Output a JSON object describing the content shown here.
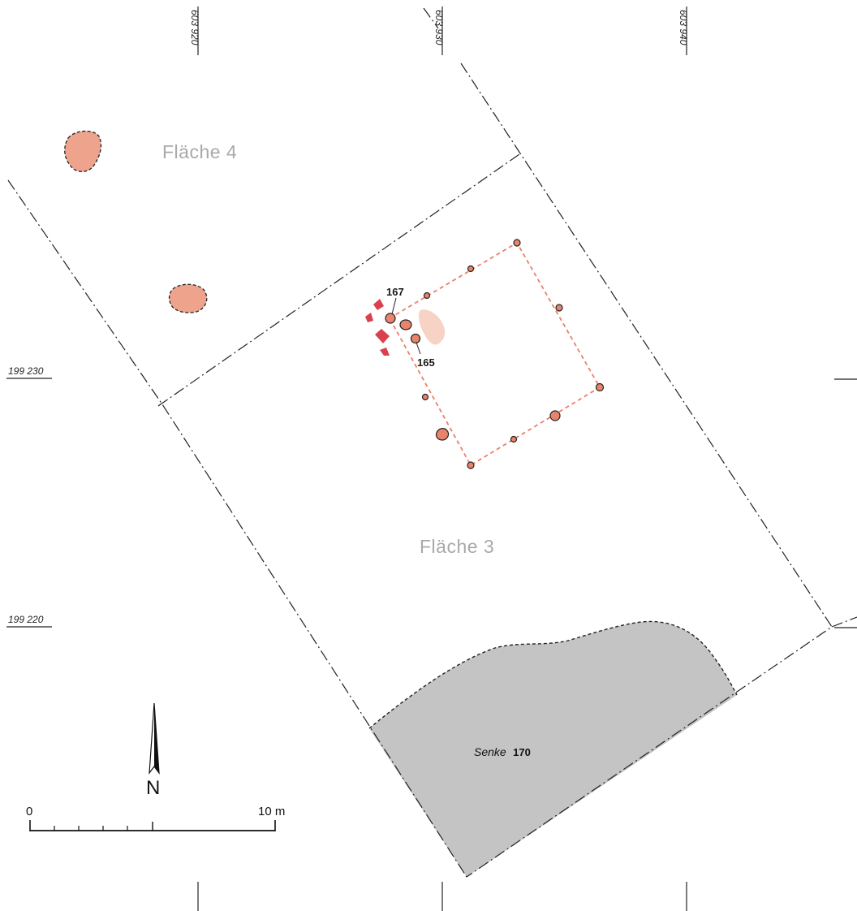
{
  "areas": {
    "flaeche4": "Fläche 4",
    "flaeche3": "Fläche 3"
  },
  "features": {
    "f167": "167",
    "f165": "165"
  },
  "senke": {
    "italic": "Senke",
    "number": "170"
  },
  "coordinates": {
    "easting": [
      "603 920",
      "603 930",
      "603 940"
    ],
    "northing": [
      "199 230",
      "199 220"
    ]
  },
  "scale": {
    "start": "0",
    "end": "10 m"
  },
  "north": "N",
  "colors": {
    "pit_fill": "#eea38d",
    "posthole_fill": "#e8846c",
    "stone_fill": "#d9414e",
    "house_outline": "#e8806a",
    "depression_fill": "#c4c4c4",
    "area_label": "#a9a9a9"
  }
}
